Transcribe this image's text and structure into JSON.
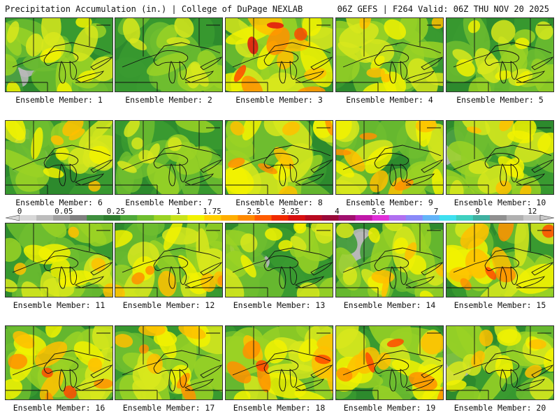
{
  "header": {
    "title_left": "Precipitation Accumulation (in.) | College of DuPage NEXLAB",
    "title_right": "06Z GEFS | F264 Valid: 06Z THU NOV 20 2025"
  },
  "legend": {
    "ticks": [
      "0",
      "0.05",
      "0.25",
      "1",
      "1.75",
      "2.5",
      "3.25",
      "4",
      "5.5",
      "7",
      "9",
      "12"
    ],
    "colors": [
      "#d8d8d8",
      "#bcbcbc",
      "#a0a0a0",
      "#808080",
      "#3f8f3f",
      "#2f7d2f",
      "#4fa83a",
      "#6fbd2f",
      "#9ad224",
      "#c8e21c",
      "#f2f200",
      "#ffd000",
      "#ffae00",
      "#ff8a00",
      "#ff5c00",
      "#f02a00",
      "#d81010",
      "#b80a20",
      "#9a0a3a",
      "#a0106e",
      "#c018a8",
      "#e030d8",
      "#b070f0",
      "#8a8af8",
      "#64b4f8",
      "#40e0f0",
      "#40d0c0",
      "#40b0a0",
      "#909090",
      "#b0b0b0",
      "#c8c8c8"
    ]
  },
  "map": {
    "base_color": "#2d8a2d",
    "dry_color": "#b8b8b8",
    "moisture_colors": [
      "#3a9a30",
      "#6fbd2f",
      "#9ad224",
      "#d8e81c",
      "#f2f200",
      "#ffc000",
      "#ff9000",
      "#ff4a00",
      "#e01010",
      "#b00030"
    ]
  },
  "members": [
    {
      "label": "Ensemble Member: 1",
      "wet": 0.45,
      "dry": 0.2
    },
    {
      "label": "Ensemble Member: 2",
      "wet": 0.35,
      "dry": 0.0
    },
    {
      "label": "Ensemble Member: 3",
      "wet": 0.85,
      "dry": 0.0
    },
    {
      "label": "Ensemble Member: 4",
      "wet": 0.55,
      "dry": 0.0
    },
    {
      "label": "Ensemble Member: 5",
      "wet": 0.45,
      "dry": 0.0
    },
    {
      "label": "Ensemble Member: 6",
      "wet": 0.6,
      "dry": 0.05
    },
    {
      "label": "Ensemble Member: 7",
      "wet": 0.4,
      "dry": 0.0
    },
    {
      "label": "Ensemble Member: 8",
      "wet": 0.65,
      "dry": 0.05
    },
    {
      "label": "Ensemble Member: 9",
      "wet": 0.7,
      "dry": 0.25
    },
    {
      "label": "Ensemble Member: 10",
      "wet": 0.6,
      "dry": 0.2
    },
    {
      "label": "Ensemble Member: 11",
      "wet": 0.6,
      "dry": 0.0
    },
    {
      "label": "Ensemble Member: 12",
      "wet": 0.65,
      "dry": 0.1
    },
    {
      "label": "Ensemble Member: 13",
      "wet": 0.45,
      "dry": 0.05
    },
    {
      "label": "Ensemble Member: 14",
      "wet": 0.6,
      "dry": 0.2
    },
    {
      "label": "Ensemble Member: 15",
      "wet": 0.8,
      "dry": 0.0
    },
    {
      "label": "Ensemble Member: 16",
      "wet": 0.8,
      "dry": 0.0
    },
    {
      "label": "Ensemble Member: 17",
      "wet": 0.7,
      "dry": 0.0
    },
    {
      "label": "Ensemble Member: 18",
      "wet": 0.8,
      "dry": 0.0
    },
    {
      "label": "Ensemble Member: 19",
      "wet": 0.8,
      "dry": 0.0
    },
    {
      "label": "Ensemble Member: 20",
      "wet": 0.55,
      "dry": 0.2
    }
  ]
}
